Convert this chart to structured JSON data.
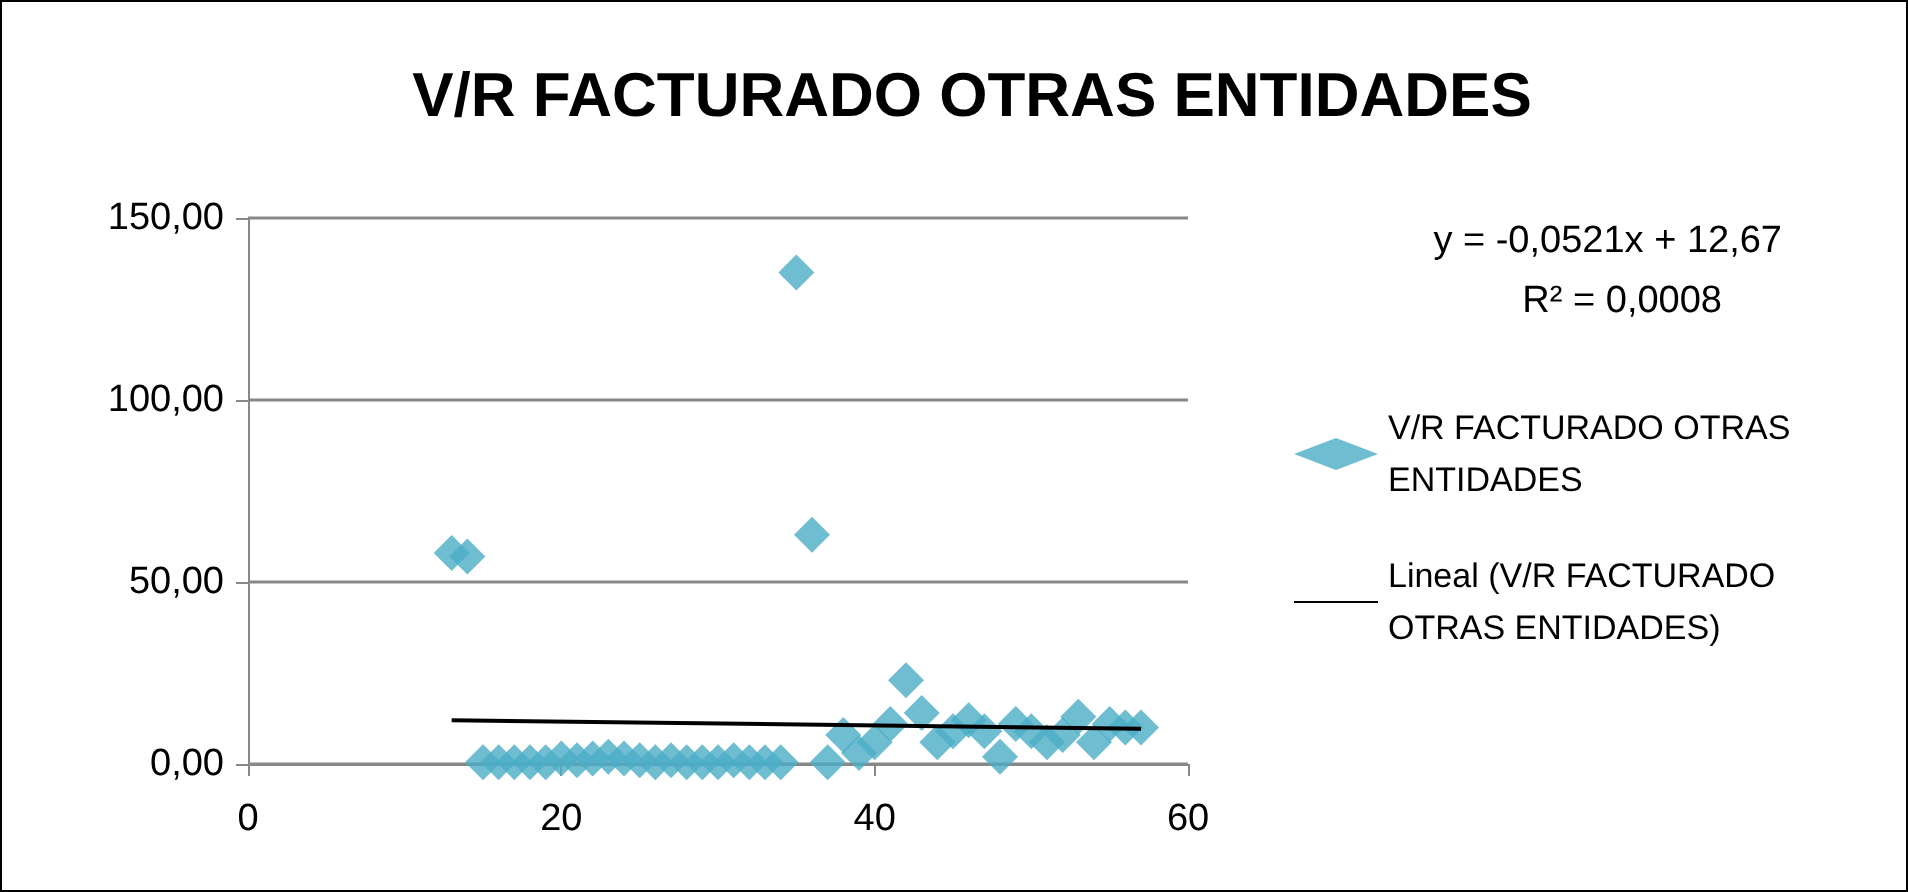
{
  "chart_data": {
    "type": "scatter",
    "title": "V/R FACTURADO OTRAS ENTIDADES",
    "annotations": [
      "y = -0,0521x + 12,67",
      "R² = 0,0008"
    ],
    "xlim": [
      0,
      60
    ],
    "xticks": [
      0,
      20,
      40,
      60
    ],
    "ylim": [
      0,
      150
    ],
    "yticks": [
      {
        "value": 0,
        "label": "0,00"
      },
      {
        "value": 50,
        "label": "50,00"
      },
      {
        "value": 100,
        "label": "100,00"
      },
      {
        "value": 150,
        "label": "150,00"
      }
    ],
    "grid": "y",
    "legend": "right",
    "marker": "diamond",
    "series": [
      {
        "name": "V/R FACTURADO OTRAS ENTIDADES",
        "color": "#4bacc6",
        "x": [
          13,
          14,
          15,
          16,
          17,
          18,
          19,
          20,
          21,
          22,
          23,
          24,
          25,
          26,
          27,
          28,
          29,
          30,
          31,
          32,
          33,
          34,
          35,
          36,
          37,
          38,
          39,
          40,
          41,
          42,
          43,
          44,
          45,
          46,
          47,
          48,
          49,
          50,
          51,
          52,
          53,
          54,
          55,
          56,
          57
        ],
        "values": [
          58,
          57,
          0.5,
          0.5,
          0.5,
          0.5,
          0.5,
          1.5,
          1,
          1.5,
          2,
          1.5,
          1,
          0.5,
          1,
          0.5,
          0.5,
          0.5,
          1,
          0.5,
          0.5,
          0.5,
          135,
          63,
          0.5,
          8,
          3,
          6,
          11,
          23,
          14,
          6,
          9,
          12,
          9,
          2,
          11,
          9,
          6,
          8,
          13,
          6,
          11,
          10,
          10
        ]
      },
      {
        "name": "Lineal (V/R FACTURADO OTRAS ENTIDADES)",
        "type": "line",
        "color": "#000000",
        "line_style": "solid",
        "marker": "none",
        "x": [
          13,
          57
        ],
        "values": [
          12,
          9.7
        ]
      }
    ]
  }
}
